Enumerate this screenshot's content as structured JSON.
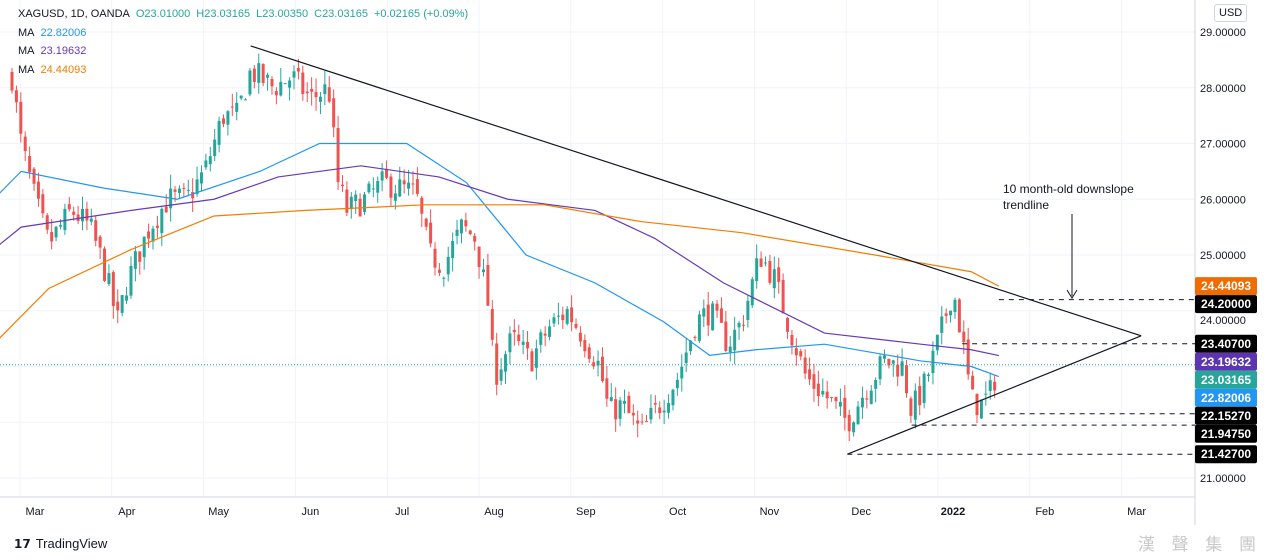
{
  "header": {
    "symbol": "XAGUSD, 1D, OANDA",
    "open": "O23.01000",
    "high": "H23.03165",
    "low": "L23.00350",
    "close": "C23.03165",
    "change": "+0.02165 (+0.09%)",
    "mas": [
      {
        "label": "MA",
        "value": "22.82006",
        "color": "#2196f3"
      },
      {
        "label": "MA",
        "value": "23.19632",
        "color": "#673ab7"
      },
      {
        "label": "MA",
        "value": "24.44093",
        "color": "#f57c00"
      }
    ]
  },
  "currency": "USD",
  "footer": {
    "brand": "TradingView",
    "watermark": "漢 聲 集 團"
  },
  "chart_data": {
    "type": "line",
    "title": "XAGUSD, 1D, OANDA",
    "ylim": [
      20.8,
      29.4
    ],
    "y_ticks": [
      "29.00000",
      "28.00000",
      "27.00000",
      "26.00000",
      "25.00000",
      "24.00000",
      "21.00000"
    ],
    "y_tick_values": [
      29,
      28,
      27,
      26,
      25,
      24,
      21
    ],
    "x_ticks": [
      "Mar",
      "Apr",
      "May",
      "Jun",
      "Jul",
      "Aug",
      "Sep",
      "Oct",
      "Nov",
      "Dec",
      "2022",
      "Feb",
      "Mar"
    ],
    "price_path_month_index": [
      [
        0,
        28.2
      ],
      [
        0.1,
        27.0
      ],
      [
        0.25,
        26.0
      ],
      [
        0.4,
        25.2
      ],
      [
        0.65,
        25.8
      ],
      [
        0.85,
        25.5
      ],
      [
        1.0,
        24.8
      ],
      [
        1.15,
        23.8
      ],
      [
        1.25,
        24.5
      ],
      [
        1.5,
        25.5
      ],
      [
        1.7,
        26.0
      ],
      [
        1.9,
        26.0
      ],
      [
        2.1,
        26.5
      ],
      [
        2.3,
        27.5
      ],
      [
        2.45,
        27.5
      ],
      [
        2.6,
        28.3
      ],
      [
        2.85,
        28.0
      ],
      [
        3.05,
        28.2
      ],
      [
        3.25,
        27.8
      ],
      [
        3.45,
        28.0
      ],
      [
        3.55,
        26.3
      ],
      [
        3.65,
        25.8
      ],
      [
        3.85,
        26.0
      ],
      [
        4.05,
        26.3
      ],
      [
        4.4,
        26.1
      ],
      [
        4.55,
        25.0
      ],
      [
        4.7,
        24.8
      ],
      [
        4.9,
        25.5
      ],
      [
        5.05,
        25.3
      ],
      [
        5.2,
        24.0
      ],
      [
        5.25,
        22.8
      ],
      [
        5.45,
        23.5
      ],
      [
        5.65,
        23.1
      ],
      [
        5.85,
        23.7
      ],
      [
        6.05,
        24.0
      ],
      [
        6.2,
        23.6
      ],
      [
        6.4,
        23.0
      ],
      [
        6.5,
        22.2
      ],
      [
        6.65,
        22.3
      ],
      [
        6.85,
        21.8
      ],
      [
        7.05,
        22.3
      ],
      [
        7.25,
        22.8
      ],
      [
        7.45,
        23.8
      ],
      [
        7.6,
        24.0
      ],
      [
        7.8,
        23.4
      ],
      [
        7.95,
        23.8
      ],
      [
        8.15,
        25.0
      ],
      [
        8.3,
        24.6
      ],
      [
        8.45,
        23.8
      ],
      [
        8.65,
        22.8
      ],
      [
        8.85,
        22.5
      ],
      [
        9.1,
        22.0
      ],
      [
        9.3,
        22.6
      ],
      [
        9.5,
        23.1
      ],
      [
        9.7,
        23.0
      ],
      [
        9.8,
        22.2
      ],
      [
        9.95,
        22.7
      ],
      [
        10.1,
        23.5
      ],
      [
        10.25,
        24.4
      ],
      [
        10.35,
        23.5
      ],
      [
        10.45,
        22.4
      ],
      [
        10.55,
        22.3
      ],
      [
        10.65,
        22.5
      ],
      [
        10.75,
        23.03165
      ]
    ],
    "series": [
      {
        "name": "MA 22.82006",
        "color": "#2196f3",
        "points": [
          [
            -0.2,
            26.0
          ],
          [
            0.1,
            26.5
          ],
          [
            1.0,
            26.2
          ],
          [
            1.8,
            26.0
          ],
          [
            2.7,
            26.5
          ],
          [
            3.35,
            27.0
          ],
          [
            4.3,
            27.0
          ],
          [
            4.95,
            26.3
          ],
          [
            5.6,
            25.0
          ],
          [
            6.35,
            24.5
          ],
          [
            7.1,
            23.8
          ],
          [
            7.6,
            23.2
          ],
          [
            8.1,
            23.3
          ],
          [
            8.85,
            23.4
          ],
          [
            9.9,
            23.1
          ],
          [
            10.45,
            23.0
          ],
          [
            10.75,
            22.82
          ]
        ]
      },
      {
        "name": "MA 23.19632",
        "color": "#673ab7",
        "points": [
          [
            -0.2,
            25.1
          ],
          [
            0.1,
            25.5
          ],
          [
            1.3,
            25.8
          ],
          [
            2.2,
            26.0
          ],
          [
            2.9,
            26.4
          ],
          [
            3.8,
            26.6
          ],
          [
            4.65,
            26.4
          ],
          [
            5.4,
            26.0
          ],
          [
            6.35,
            25.8
          ],
          [
            7.0,
            25.3
          ],
          [
            7.75,
            24.5
          ],
          [
            8.85,
            23.6
          ],
          [
            9.9,
            23.4
          ],
          [
            10.45,
            23.3
          ],
          [
            10.75,
            23.196
          ]
        ]
      },
      {
        "name": "MA 24.44093",
        "color": "#f57c00",
        "points": [
          [
            -0.2,
            23.4
          ],
          [
            0.4,
            24.4
          ],
          [
            1.3,
            25.1
          ],
          [
            2.2,
            25.7
          ],
          [
            3.2,
            25.8
          ],
          [
            4.5,
            25.9
          ],
          [
            5.8,
            25.9
          ],
          [
            6.85,
            25.6
          ],
          [
            7.95,
            25.4
          ],
          [
            9.4,
            25.0
          ],
          [
            10.45,
            24.7
          ],
          [
            10.75,
            24.44
          ]
        ]
      }
    ],
    "price_labels": [
      {
        "text": "24.44093",
        "value": 24.44093,
        "color": "#ef6c00"
      },
      {
        "text": "24.20000",
        "value": 24.2,
        "color": "#000000"
      },
      {
        "text": "23.40700",
        "value": 23.407,
        "color": "#000000"
      },
      {
        "text": "23.19632",
        "value": 23.19632,
        "color": "#5e35b1"
      },
      {
        "text": "23.03165",
        "value": 23.03165,
        "color": "#26a69a"
      },
      {
        "text": "22.82006",
        "value": 22.82006,
        "color": "#2196f3"
      },
      {
        "text": "22.15270",
        "value": 22.1527,
        "color": "#000000"
      },
      {
        "text": "21.94750",
        "value": 21.9475,
        "color": "#000000"
      },
      {
        "text": "21.42700",
        "value": 21.427,
        "color": "#000000"
      }
    ],
    "levels": [
      {
        "value": 24.2,
        "from": 10.75
      },
      {
        "value": 23.407,
        "from": 10.35
      },
      {
        "value": 22.1527,
        "from": 10.65
      },
      {
        "value": 21.9475,
        "from": 9.8
      },
      {
        "value": 21.427,
        "from": 9.1
      }
    ],
    "trendlines": [
      [
        [
          2.6,
          28.75
        ],
        [
          12.3,
          23.55
        ]
      ],
      [
        [
          9.1,
          21.427
        ],
        [
          12.3,
          23.55
        ]
      ]
    ],
    "annotation": "10 month-old downslope trendline"
  }
}
